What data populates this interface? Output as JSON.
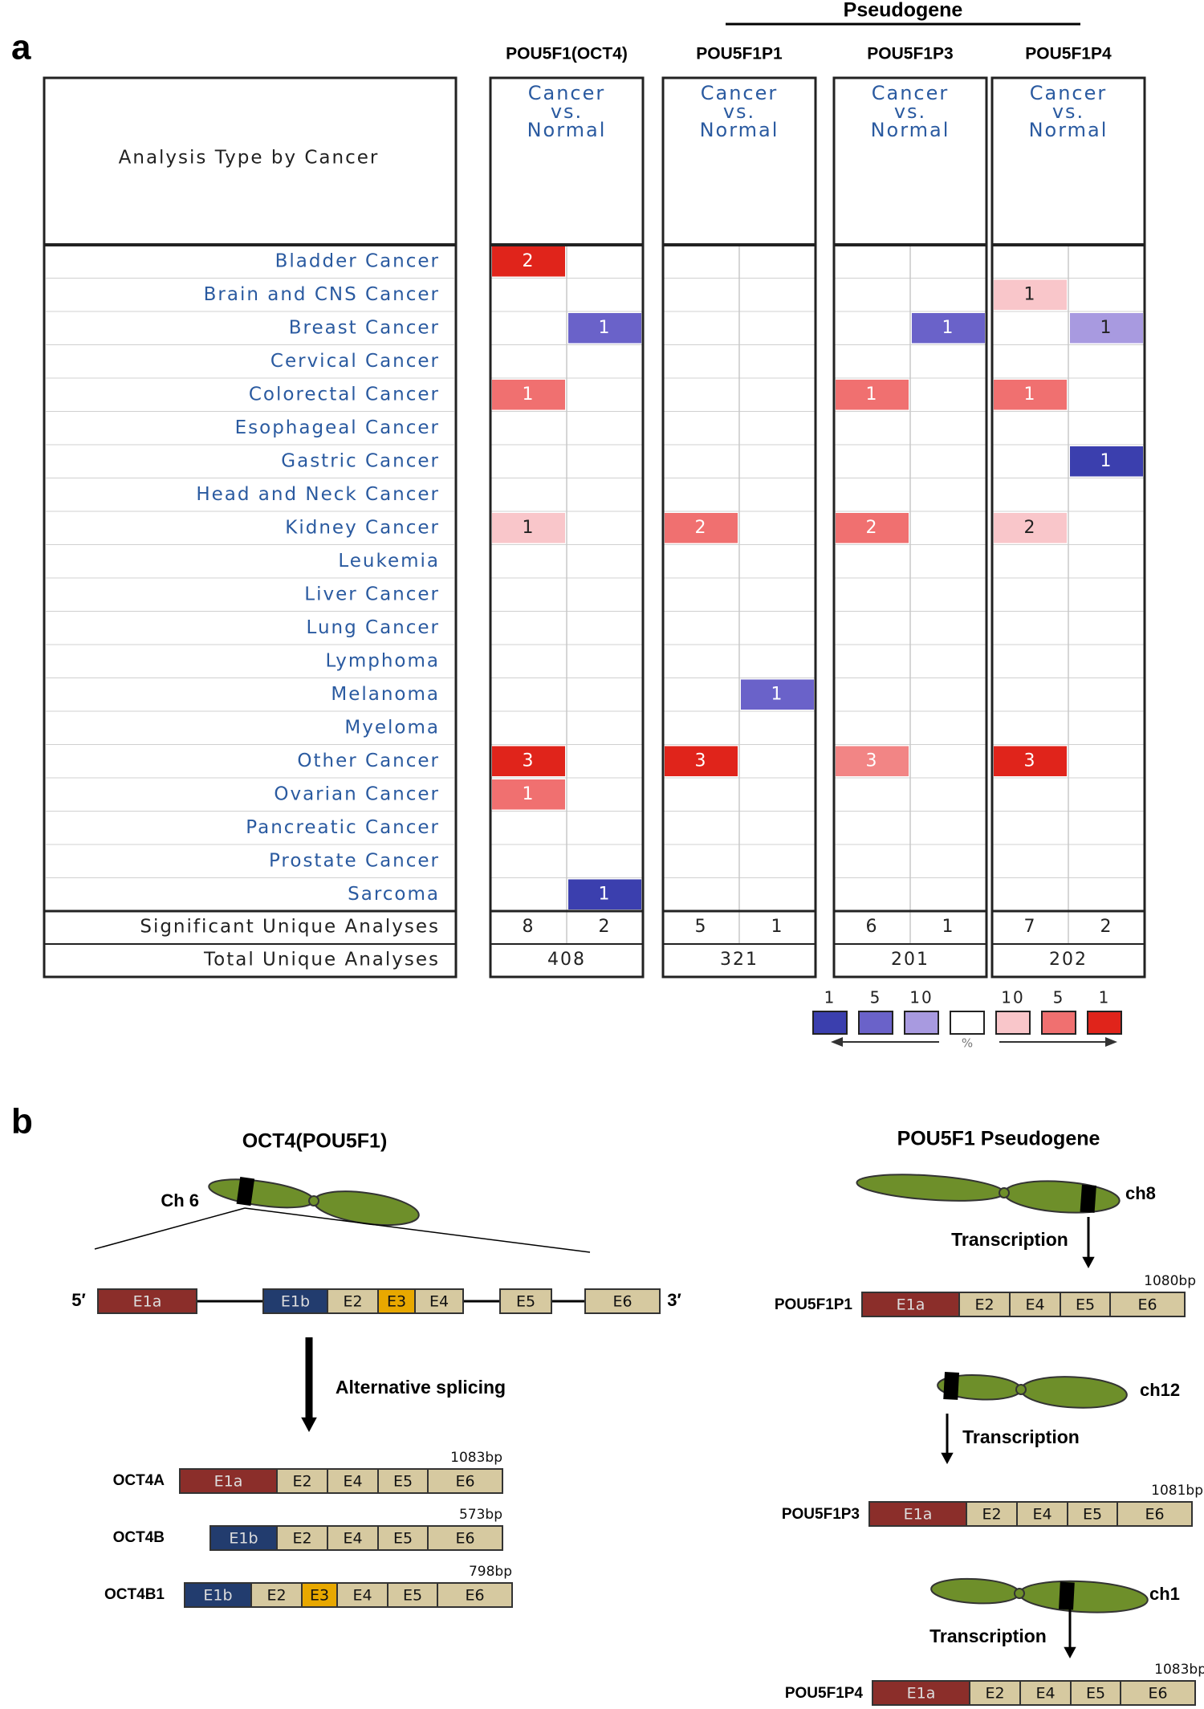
{
  "panel_a": {
    "label": "a",
    "pseudogene_header": "Pseudogene",
    "row_header": "Analysis Type by Cancer",
    "cancers": [
      "Bladder Cancer",
      "Brain and CNS Cancer",
      "Breast Cancer",
      "Cervical Cancer",
      "Colorectal Cancer",
      "Esophageal Cancer",
      "Gastric Cancer",
      "Head and Neck Cancer",
      "Kidney Cancer",
      "Leukemia",
      "Liver Cancer",
      "Lung Cancer",
      "Lymphoma",
      "Melanoma",
      "Myeloma",
      "Other Cancer",
      "Ovarian Cancer",
      "Pancreatic Cancer",
      "Prostate Cancer",
      "Sarcoma"
    ],
    "summary_labels": [
      "Significant Unique Analyses",
      "Total Unique Analyses"
    ],
    "genes": [
      {
        "name": "POU5F1(OCT4)",
        "subheader": [
          "Cancer",
          "vs.",
          "Normal"
        ],
        "cells": [
          {
            "row": 0,
            "col": 0,
            "value": 2,
            "color": "#e0241b"
          },
          {
            "row": 2,
            "col": 1,
            "value": 1,
            "color": "#6a62c9"
          },
          {
            "row": 4,
            "col": 0,
            "value": 1,
            "color": "#f07070"
          },
          {
            "row": 8,
            "col": 0,
            "value": 1,
            "color": "#f9c6ca"
          },
          {
            "row": 15,
            "col": 0,
            "value": 3,
            "color": "#e0241b"
          },
          {
            "row": 16,
            "col": 0,
            "value": 1,
            "color": "#f07070"
          },
          {
            "row": 19,
            "col": 1,
            "value": 1,
            "color": "#3b3fae"
          }
        ],
        "significant": [
          8,
          2
        ],
        "total": 408
      },
      {
        "name": "POU5F1P1",
        "subheader": [
          "Cancer",
          "vs.",
          "Normal"
        ],
        "cells": [
          {
            "row": 8,
            "col": 0,
            "value": 2,
            "color": "#f07070"
          },
          {
            "row": 13,
            "col": 1,
            "value": 1,
            "color": "#6a62c9"
          },
          {
            "row": 15,
            "col": 0,
            "value": 3,
            "color": "#e0241b"
          }
        ],
        "significant": [
          5,
          1
        ],
        "total": 321
      },
      {
        "name": "POU5F1P3",
        "subheader": [
          "Cancer",
          "vs.",
          "Normal"
        ],
        "cells": [
          {
            "row": 2,
            "col": 1,
            "value": 1,
            "color": "#6a62c9"
          },
          {
            "row": 4,
            "col": 0,
            "value": 1,
            "color": "#f07070"
          },
          {
            "row": 8,
            "col": 0,
            "value": 2,
            "color": "#f07070"
          },
          {
            "row": 15,
            "col": 0,
            "value": 3,
            "color": "#f28585"
          }
        ],
        "significant": [
          6,
          1
        ],
        "total": 201
      },
      {
        "name": "POU5F1P4",
        "subheader": [
          "Cancer",
          "vs.",
          "Normal"
        ],
        "cells": [
          {
            "row": 1,
            "col": 0,
            "value": 1,
            "color": "#f9c6ca"
          },
          {
            "row": 2,
            "col": 1,
            "value": 1,
            "color": "#a89ae0"
          },
          {
            "row": 4,
            "col": 0,
            "value": 1,
            "color": "#f07070"
          },
          {
            "row": 6,
            "col": 1,
            "value": 1,
            "color": "#3b3fae"
          },
          {
            "row": 8,
            "col": 0,
            "value": 2,
            "color": "#f9c6ca"
          },
          {
            "row": 15,
            "col": 0,
            "value": 3,
            "color": "#e0241b"
          }
        ],
        "significant": [
          7,
          2
        ],
        "total": 202
      }
    ],
    "legend": {
      "labels": [
        "1",
        "5",
        "10",
        null,
        "10",
        "5",
        "1"
      ],
      "colors": [
        "#3b3fae",
        "#6a62c9",
        "#a89ae0",
        "#ffffff",
        "#f9c6ca",
        "#f07070",
        "#e0241b"
      ],
      "unit": "%"
    }
  },
  "panel_b": {
    "label": "b",
    "exon_colors": {
      "E1a": "#8b2e2a",
      "E1b": "#223c6e",
      "E2": "#d6c9a0",
      "E3": "#e8a800",
      "E4": "#d6c9a0",
      "E5": "#d6c9a0",
      "E6": "#d6c9a0"
    },
    "left": {
      "title": "OCT4(POU5F1)",
      "chromosome": "Ch 6",
      "gene": {
        "five": "5′",
        "three": "3′",
        "exons": [
          "E1a",
          "E1b",
          "E2",
          "E3",
          "E4",
          "E5",
          "E6"
        ]
      },
      "process": "Alternative splicing",
      "isoforms": [
        {
          "name": "OCT4A",
          "length": "1083bp",
          "exons": [
            "E1a",
            "E2",
            "E4",
            "E5",
            "E6"
          ]
        },
        {
          "name": "OCT4B",
          "length": "573bp",
          "exons": [
            "E1b",
            "E2",
            "E4",
            "E5",
            "E6"
          ]
        },
        {
          "name": "OCT4B1",
          "length": "798bp",
          "exons": [
            "E1b",
            "E2",
            "E3",
            "E4",
            "E5",
            "E6"
          ]
        }
      ]
    },
    "right": {
      "title": "POU5F1 Pseudogene",
      "items": [
        {
          "chromosome": "ch8",
          "process": "Transcription",
          "name": "POU5F1P1",
          "length": "1080bp",
          "exons": [
            "E1a",
            "E2",
            "E4",
            "E5",
            "E6"
          ]
        },
        {
          "chromosome": "ch12",
          "process": "Transcription",
          "name": "POU5F1P3",
          "length": "1081bp",
          "exons": [
            "E1a",
            "E2",
            "E4",
            "E5",
            "E6"
          ]
        },
        {
          "chromosome": "ch1",
          "process": "Transcription",
          "name": "POU5F1P4",
          "length": "1083bp",
          "exons": [
            "E1a",
            "E2",
            "E4",
            "E5",
            "E6"
          ]
        }
      ]
    }
  }
}
